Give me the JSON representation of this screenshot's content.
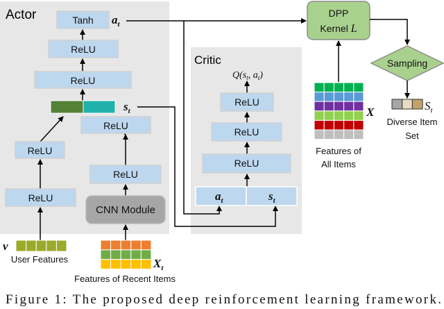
{
  "actor": {
    "title": "Actor",
    "layers": [
      "Tanh",
      "ReLU",
      "ReLU",
      "ReLU",
      "ReLU",
      "ReLU",
      "ReLU"
    ],
    "cnn_label": "CNN Module",
    "action_symbol": "a",
    "action_sub": "t",
    "state_symbol": "s",
    "state_sub": "t",
    "state_colors": [
      "#538135",
      "#20b2aa"
    ]
  },
  "critic": {
    "title": "Critic",
    "output_label": "Q(s",
    "output_sub1": "t",
    "output_mid": ", a",
    "output_sub2": "t",
    "output_end": ")",
    "layers": [
      "ReLU",
      "ReLU",
      "ReLU"
    ],
    "input_a": "a",
    "input_a_sub": "t",
    "input_s": "s",
    "input_s_sub": "t"
  },
  "inputs": {
    "user_symbol": "v",
    "user_label": "User Features",
    "user_color": "#9aaa2a",
    "recent_symbol": "X",
    "recent_sub": "t",
    "recent_label": "Features of Recent Items",
    "recent_colors": [
      "#ed7d31",
      "#70ad47",
      "#ffc000"
    ]
  },
  "dpp": {
    "line1": "DPP",
    "line2": "Kernel ",
    "kernel_symbol": "L",
    "fill": "#a9d18e",
    "sampling_label": "Sampling",
    "all_items_symbol": "X",
    "all_items_label_1": "Features of",
    "all_items_label_2": "All Items",
    "all_items_colors": [
      "#00b050",
      "#5b9bd5",
      "#7030a0",
      "#92d050",
      "#c00000",
      "#bfbfbf"
    ],
    "set_symbol": "S",
    "set_sub": "t",
    "set_label_1": "Diverse Item",
    "set_label_2": "Set",
    "set_colors": [
      "#a6a6a6",
      "#e6dcc3",
      "#c4a26a"
    ]
  },
  "caption": "Figure 1: The proposed deep reinforcement learning framework."
}
